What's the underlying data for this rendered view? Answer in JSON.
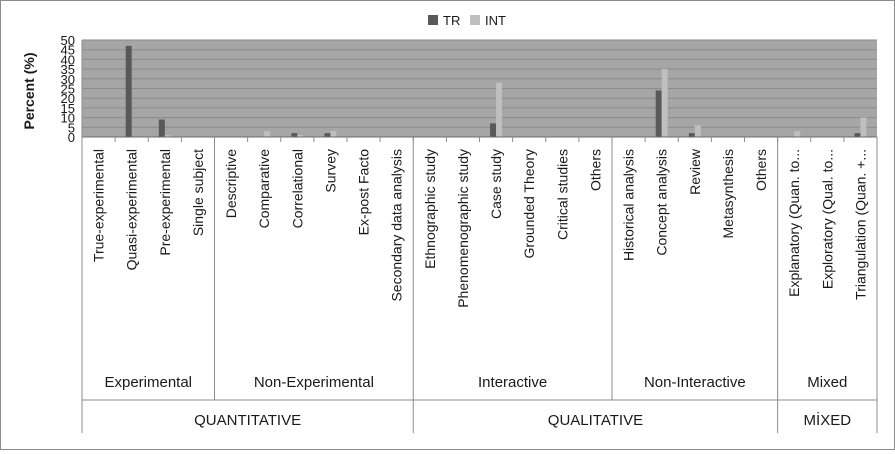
{
  "chart_data": {
    "type": "bar",
    "ylabel": "Percent (%)",
    "ylim": [
      0,
      50
    ],
    "yticks": [
      0,
      5,
      10,
      15,
      20,
      25,
      30,
      35,
      40,
      45,
      50
    ],
    "grid": true,
    "legend_position": "top-center",
    "categories": [
      "True-experimental",
      "Quasi-experimental",
      "Pre-experimental",
      "Single subject",
      "Descriptive",
      "Comparative",
      "Correlational",
      "Survey",
      "Ex-post Facto",
      "Secondary data analysis",
      "Ethnographic study",
      "Phenomenographic study",
      "Case study",
      "Grounded Theory",
      "Critical studies",
      "Others",
      "Historical analysis",
      "Concept analysis",
      "Review",
      "Metasynthesis",
      "Others",
      "Explanatory (Quan. to...",
      "Exploratory (Qual. to...",
      "Triangulation (Quan. +..."
    ],
    "series": [
      {
        "name": "TR",
        "color": "#595959",
        "values": [
          0,
          47,
          9,
          0,
          0,
          0,
          2,
          2,
          0,
          0,
          0,
          0,
          7,
          0,
          0,
          0,
          0,
          24,
          2,
          0,
          0,
          0,
          0,
          2
        ]
      },
      {
        "name": "INT",
        "color": "#bfbfbf",
        "values": [
          0,
          0,
          1,
          0,
          0,
          3,
          1,
          3,
          0,
          0,
          0,
          0,
          28,
          0,
          0,
          0,
          0,
          35,
          6,
          0,
          0,
          3,
          0,
          10
        ]
      }
    ],
    "subgroups": [
      {
        "label": "Experimental",
        "count": 4
      },
      {
        "label": "Non-Experimental",
        "count": 6
      },
      {
        "label": "Interactive",
        "count": 6
      },
      {
        "label": "Non-Interactive",
        "count": 5
      },
      {
        "label": "Mixed",
        "count": 3
      }
    ],
    "groups": [
      {
        "label": "QUANTITATIVE",
        "count": 10
      },
      {
        "label": "QUALITATIVE",
        "count": 11
      },
      {
        "label": "MİXED",
        "count": 3
      }
    ]
  }
}
